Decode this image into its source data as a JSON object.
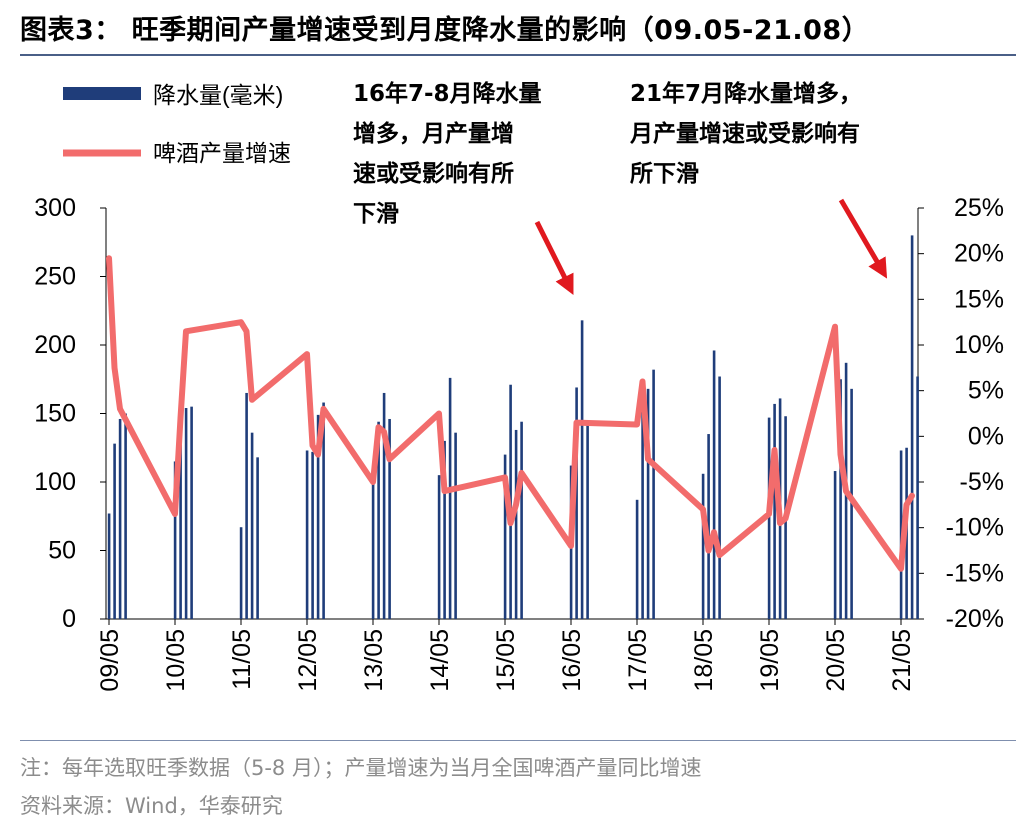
{
  "title": "图表3： 旺季期间产量增速受到月度降水量的影响（09.05-21.08）",
  "annotations": [
    {
      "lines": [
        "16年7-8月降水量",
        "增多，月产量增",
        "速或受影响有所",
        "下滑"
      ]
    },
    {
      "lines": [
        "21年7月降水量增多，",
        "月产量增速或受影响有",
        "所下滑"
      ]
    }
  ],
  "footer": {
    "note": "注：每年选取旺季数据（5-8 月）；产量增速为当月全国啤酒产量同比增速",
    "source": "资料来源：Wind，华泰研究"
  },
  "colors": {
    "bar": "#1f3d7a",
    "line": "#f26c6c",
    "arrow": "#e0191f",
    "rule": "#4a5f87"
  },
  "chart_data": {
    "type": "bar+line",
    "legend_position": "top-left",
    "x_tick_labels": [
      "09/05",
      "10/05",
      "11/05",
      "12/05",
      "13/05",
      "14/05",
      "15/05",
      "16/05",
      "17/05",
      "18/05",
      "19/05",
      "20/05",
      "21/05"
    ],
    "x_tick_rotation": -90,
    "y_left": {
      "ylim": [
        0,
        300
      ],
      "ticks": [
        "0",
        "50",
        "100",
        "150",
        "200",
        "250",
        "300"
      ]
    },
    "y_right": {
      "ylim": [
        -20,
        25
      ],
      "ticks": [
        "-20%",
        "-15%",
        "-10%",
        "-5%",
        "0%",
        "5%",
        "10%",
        "15%",
        "20%",
        "25%"
      ]
    },
    "grid": false,
    "series": [
      {
        "name": "降水量(毫米)",
        "type": "bar",
        "axis": "left",
        "data": [
          [
            "2009-05",
            77
          ],
          [
            "2009-06",
            128
          ],
          [
            "2009-07",
            146
          ],
          [
            "2009-08",
            150
          ],
          [
            "2010-05",
            115
          ],
          [
            "2010-06",
            154
          ],
          [
            "2010-07",
            154
          ],
          [
            "2010-08",
            155
          ],
          [
            "2011-05",
            67
          ],
          [
            "2011-06",
            165
          ],
          [
            "2011-07",
            136
          ],
          [
            "2011-08",
            118
          ],
          [
            "2012-05",
            123
          ],
          [
            "2012-06",
            122
          ],
          [
            "2012-07",
            149
          ],
          [
            "2012-08",
            158
          ],
          [
            "2013-05",
            110
          ],
          [
            "2013-06",
            144
          ],
          [
            "2013-07",
            165
          ],
          [
            "2013-08",
            146
          ],
          [
            "2014-05",
            105
          ],
          [
            "2014-06",
            130
          ],
          [
            "2014-07",
            176
          ],
          [
            "2014-08",
            136
          ],
          [
            "2015-05",
            120
          ],
          [
            "2015-06",
            171
          ],
          [
            "2015-07",
            138
          ],
          [
            "2015-08",
            144
          ],
          [
            "2016-05",
            112
          ],
          [
            "2016-06",
            169
          ],
          [
            "2016-07",
            218
          ],
          [
            "2016-08",
            143
          ],
          [
            "2017-05",
            87
          ],
          [
            "2017-06",
            154
          ],
          [
            "2017-07",
            168
          ],
          [
            "2017-08",
            182
          ],
          [
            "2018-05",
            106
          ],
          [
            "2018-06",
            135
          ],
          [
            "2018-07",
            196
          ],
          [
            "2018-08",
            177
          ],
          [
            "2019-05",
            147
          ],
          [
            "2019-06",
            157
          ],
          [
            "2019-07",
            161
          ],
          [
            "2019-08",
            148
          ],
          [
            "2020-05",
            108
          ],
          [
            "2020-06",
            175
          ],
          [
            "2020-07",
            187
          ],
          [
            "2020-08",
            168
          ],
          [
            "2021-05",
            123
          ],
          [
            "2021-06",
            125
          ],
          [
            "2021-07",
            280
          ],
          [
            "2021-08",
            177
          ]
        ]
      },
      {
        "name": "啤酒产量增速",
        "type": "line",
        "axis": "right",
        "unit": "%",
        "data": [
          [
            "2009-05",
            19.5
          ],
          [
            "2009-06",
            7.5
          ],
          [
            "2009-07",
            3.0
          ],
          [
            "2010-05",
            -8.5
          ],
          [
            "2010-06",
            2.0
          ],
          [
            "2010-07",
            11.5
          ],
          [
            "2011-05",
            12.5
          ],
          [
            "2011-06",
            11.5
          ],
          [
            "2011-07",
            4.0
          ],
          [
            "2012-05",
            9.0
          ],
          [
            "2012-06",
            -1.0
          ],
          [
            "2012-07",
            -2.0
          ],
          [
            "2012-08",
            3.0
          ],
          [
            "2013-05",
            -5.0
          ],
          [
            "2013-06",
            1.0
          ],
          [
            "2013-07",
            0.5
          ],
          [
            "2013-08",
            -2.5
          ],
          [
            "2014-05",
            2.5
          ],
          [
            "2014-06",
            -6.0
          ],
          [
            "2015-05",
            -4.5
          ],
          [
            "2015-06",
            -9.5
          ],
          [
            "2015-07",
            -7.5
          ],
          [
            "2015-08",
            -4.0
          ],
          [
            "2016-05",
            -12.0
          ],
          [
            "2016-06",
            1.5
          ],
          [
            "2017-05",
            1.3
          ],
          [
            "2017-06",
            6.0
          ],
          [
            "2017-07",
            -2.5
          ],
          [
            "2018-05",
            -8.0
          ],
          [
            "2018-06",
            -12.5
          ],
          [
            "2018-07",
            -10.5
          ],
          [
            "2018-08",
            -13.0
          ],
          [
            "2019-05",
            -8.5
          ],
          [
            "2019-06",
            -1.5
          ],
          [
            "2019-07",
            -9.5
          ],
          [
            "2019-08",
            -9.0
          ],
          [
            "2020-05",
            12.0
          ],
          [
            "2020-06",
            -2.0
          ],
          [
            "2020-07",
            -6.0
          ],
          [
            "2021-05",
            -14.5
          ],
          [
            "2021-06",
            -7.5
          ],
          [
            "2021-07",
            -6.5
          ]
        ]
      }
    ]
  }
}
